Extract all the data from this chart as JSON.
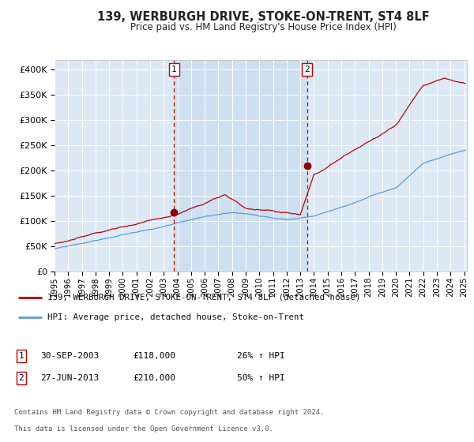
{
  "title": "139, WERBURGH DRIVE, STOKE-ON-TRENT, ST4 8LF",
  "subtitle": "Price paid vs. HM Land Registry's House Price Index (HPI)",
  "ylim": [
    0,
    420000
  ],
  "yticks": [
    0,
    50000,
    100000,
    150000,
    200000,
    250000,
    300000,
    350000,
    400000
  ],
  "background_color": "#ffffff",
  "plot_bg_color": "#dce9f5",
  "shade_color": "#c8ddf0",
  "grid_color": "#e0e0e0",
  "sale1_x": 2003.75,
  "sale1_value": 118000,
  "sale2_x": 2013.5,
  "sale2_value": 210000,
  "sale1_date_str": "30-SEP-2003",
  "sale1_price_str": "£118,000",
  "sale1_hpi_str": "26% ↑ HPI",
  "sale2_date_str": "27-JUN-2013",
  "sale2_price_str": "£210,000",
  "sale2_hpi_str": "50% ↑ HPI",
  "legend_line1": "139, WERBURGH DRIVE, STOKE-ON-TRENT, ST4 8LF (detached house)",
  "legend_line2": "HPI: Average price, detached house, Stoke-on-Trent",
  "footer1": "Contains HM Land Registry data © Crown copyright and database right 2024.",
  "footer2": "This data is licensed under the Open Government Licence v3.0.",
  "hpi_line_color": "#5b9bd5",
  "price_line_color": "#c00000",
  "vline_color": "#cc0000",
  "marker_color": "#8b0000",
  "xmin": 1995.0,
  "xmax": 2025.2
}
